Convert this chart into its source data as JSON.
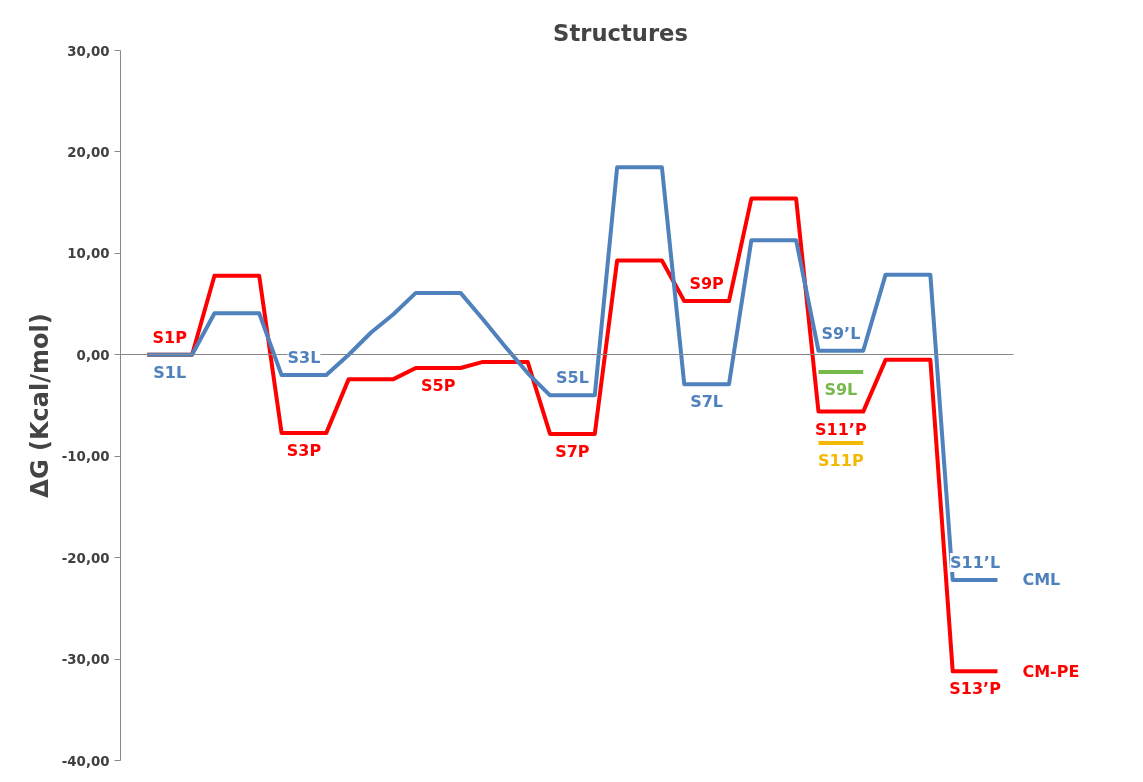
{
  "chart_data": {
    "type": "line",
    "title": "Structures",
    "ylabel": "ΔG (Kcal/mol)",
    "categories": [
      null,
      null,
      null,
      null,
      null,
      null,
      null,
      null,
      null,
      null,
      null,
      null,
      null,
      null,
      null,
      null,
      null,
      null,
      null,
      null,
      null,
      null,
      null,
      null,
      null,
      null,
      null,
      null,
      null,
      null,
      null,
      null,
      null,
      null,
      null,
      null,
      null,
      null,
      null
    ],
    "ylim": [
      -40,
      30
    ],
    "yticks": [
      {
        "value": -40,
        "label": "-40,00"
      },
      {
        "value": -30,
        "label": "-30,00"
      },
      {
        "value": -20,
        "label": "-20,00"
      },
      {
        "value": -10,
        "label": "-10,00"
      },
      {
        "value": 0,
        "label": "0,00"
      },
      {
        "value": 10,
        "label": "10,00"
      },
      {
        "value": 20,
        "label": "20,00"
      },
      {
        "value": 30,
        "label": "30,00"
      }
    ],
    "tick_labels": "y",
    "line_style": "solid",
    "series": [
      {
        "name": "CM-PE",
        "color": "#ff0000",
        "values": [
          0,
          0,
          0,
          7.8,
          7.8,
          7.8,
          -7.7,
          -7.7,
          -7.7,
          -2.4,
          -2.4,
          -2.4,
          -1.3,
          -1.3,
          -1.3,
          -0.7,
          -0.7,
          -0.7,
          -7.8,
          -7.8,
          -7.8,
          9.3,
          9.3,
          9.3,
          5.3,
          5.3,
          5.3,
          15.4,
          15.4,
          15.4,
          -5.6,
          -5.6,
          -5.6,
          -0.5,
          -0.5,
          -0.5,
          -31.2,
          -31.2,
          -31.2
        ],
        "value_labels": [
          null,
          "S1P",
          null,
          null,
          null,
          null,
          null,
          "S3P",
          null,
          null,
          null,
          null,
          null,
          "S5P",
          null,
          null,
          null,
          null,
          null,
          "S7P",
          null,
          null,
          null,
          null,
          null,
          "S9P",
          null,
          null,
          null,
          null,
          null,
          "S11’P",
          null,
          null,
          null,
          null,
          null,
          "S13’P",
          null
        ]
      },
      {
        "name": "CML",
        "color": "#4f81bd",
        "values": [
          0,
          0,
          0,
          4.1,
          4.1,
          4.1,
          -2,
          -2,
          -2,
          0,
          2.2,
          4,
          6.1,
          6.1,
          6.1,
          3.5,
          0.8,
          -1.8,
          -4,
          -4,
          -4,
          18.5,
          18.5,
          18.5,
          -2.9,
          -2.9,
          -2.9,
          11.3,
          11.3,
          11.3,
          0.4,
          0.4,
          0.4,
          7.9,
          7.9,
          7.9,
          -22.2,
          -22.2,
          -22.2
        ],
        "value_labels": [
          null,
          "S1L",
          null,
          null,
          null,
          null,
          null,
          "S3L",
          null,
          null,
          null,
          null,
          null,
          null,
          null,
          null,
          null,
          null,
          null,
          "S5L",
          null,
          null,
          null,
          null,
          null,
          "S7L",
          null,
          null,
          null,
          null,
          null,
          "S9’L",
          null,
          null,
          null,
          null,
          null,
          "S11’L",
          null
        ]
      },
      {
        "color": "#77b84a",
        "values": [
          null,
          null,
          null,
          null,
          null,
          null,
          null,
          null,
          null,
          null,
          null,
          null,
          null,
          null,
          null,
          null,
          null,
          null,
          null,
          null,
          null,
          null,
          null,
          null,
          null,
          null,
          null,
          null,
          null,
          null,
          -1.7,
          -1.7,
          -1.7,
          null,
          null,
          null,
          null,
          null,
          null
        ],
        "value_labels": [
          null,
          null,
          null,
          null,
          null,
          null,
          null,
          null,
          null,
          null,
          null,
          null,
          null,
          null,
          null,
          null,
          null,
          null,
          null,
          null,
          null,
          null,
          null,
          null,
          null,
          null,
          null,
          null,
          null,
          null,
          null,
          "S9L",
          null,
          null,
          null,
          null,
          null,
          null,
          null
        ]
      },
      {
        "color": "#f5b800",
        "values": [
          null,
          null,
          null,
          null,
          null,
          null,
          null,
          null,
          null,
          null,
          null,
          null,
          null,
          null,
          null,
          null,
          null,
          null,
          null,
          null,
          null,
          null,
          null,
          null,
          null,
          null,
          null,
          null,
          null,
          null,
          -8.7,
          -8.7,
          -8.7,
          null,
          null,
          null,
          null,
          null,
          null
        ],
        "value_labels": [
          null,
          null,
          null,
          null,
          null,
          null,
          null,
          null,
          null,
          null,
          null,
          null,
          null,
          null,
          null,
          null,
          null,
          null,
          null,
          null,
          null,
          null,
          null,
          null,
          null,
          null,
          null,
          null,
          null,
          null,
          null,
          "S11P",
          null,
          null,
          null,
          null,
          null,
          null,
          null
        ]
      }
    ]
  }
}
